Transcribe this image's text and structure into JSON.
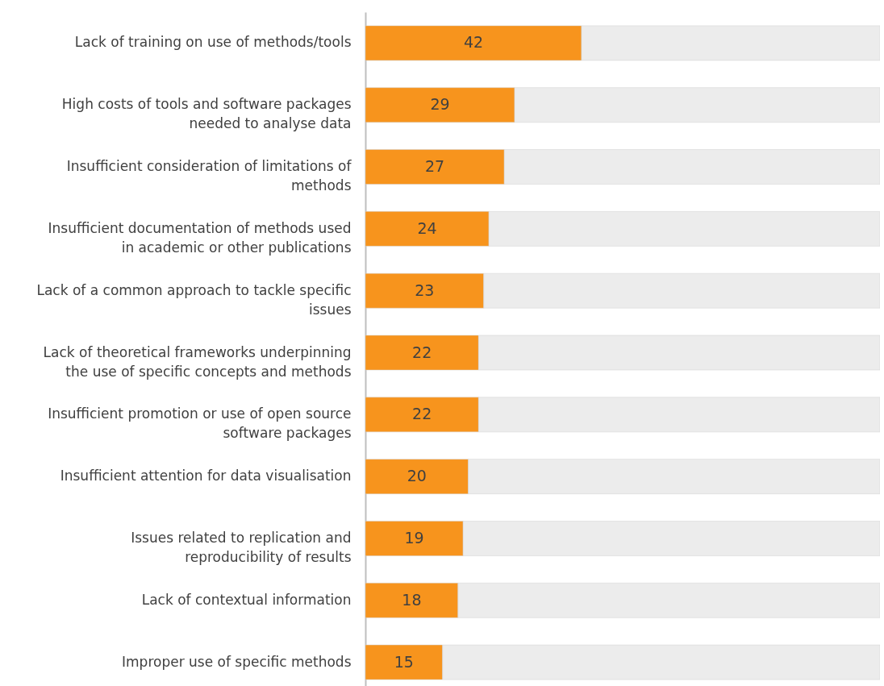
{
  "chart_data": {
    "type": "bar",
    "orientation": "horizontal",
    "stacked": true,
    "categories": [
      "Lack of training on use of methods/tools",
      "High costs of tools and software packages needed to analyse data",
      "Insufficient consideration of limitations of methods",
      "Insufficient documentation of methods used in academic or other publications",
      "Lack of a common approach to tackle specific issues",
      "Lack of theoretical frameworks underpinning the use of specific concepts and methods",
      "Insufficient promotion or use of open source software packages",
      "Insufficient attention for data visualisation",
      "Issues related to replication and reproducibility of results",
      "Lack of contextual information",
      "Improper use of specific methods"
    ],
    "series": [
      {
        "color": "#f7941d",
        "values": [
          42,
          29,
          27,
          24,
          23,
          22,
          22,
          20,
          19,
          18,
          15
        ],
        "value_labels": [
          "42",
          "29",
          "27",
          "24",
          "23",
          "22",
          "22",
          "20",
          "19",
          "18",
          "15"
        ]
      },
      {
        "color": "#ececec",
        "values": [
          58,
          71,
          73,
          76,
          77,
          78,
          78,
          80,
          81,
          82,
          85
        ]
      }
    ],
    "xlim": [
      0,
      100
    ],
    "tick_labels": "y"
  }
}
